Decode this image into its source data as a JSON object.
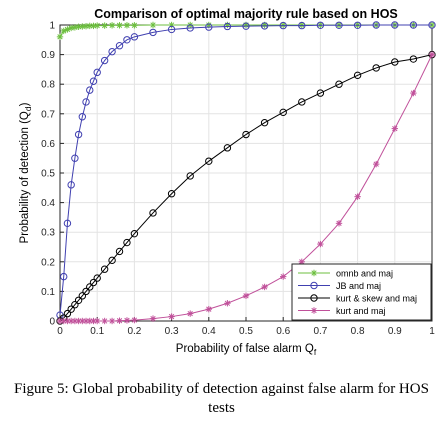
{
  "chart_data": {
    "type": "line",
    "title": "Comparison of  optimal majority rule based on HOS",
    "xlabel": "Probability of false alarm Q",
    "xlabel_sub": "f",
    "ylabel": "Probability of detection (Q",
    "ylabel_sub": "d",
    "ylabel_close": ")",
    "xlim": [
      0,
      1
    ],
    "ylim": [
      0,
      1
    ],
    "xticks": [
      0,
      0.1,
      0.2,
      0.3,
      0.4,
      0.5,
      0.6,
      0.7,
      0.8,
      0.9,
      1
    ],
    "yticks": [
      0,
      0.1,
      0.2,
      0.3,
      0.4,
      0.5,
      0.6,
      0.7,
      0.8,
      0.9,
      1
    ],
    "xtick_labels": [
      "0",
      "0.1",
      "0.2",
      "0.3",
      "0.4",
      "0.5",
      "0.6",
      "0.7",
      "0.8",
      "0.9",
      "1"
    ],
    "ytick_labels": [
      "0",
      "0.1",
      "0.2",
      "0.3",
      "0.4",
      "0.5",
      "0.6",
      "0.7",
      "0.8",
      "0.9",
      "1"
    ],
    "grid": true,
    "legend_position": "bottom-right",
    "x": [
      0,
      0.01,
      0.02,
      0.03,
      0.04,
      0.05,
      0.06,
      0.07,
      0.08,
      0.09,
      0.1,
      0.12,
      0.14,
      0.16,
      0.18,
      0.2,
      0.25,
      0.3,
      0.35,
      0.4,
      0.45,
      0.5,
      0.55,
      0.6,
      0.65,
      0.7,
      0.75,
      0.8,
      0.85,
      0.9,
      0.95,
      1.0
    ],
    "series": [
      {
        "name": "omnb and maj",
        "color": "#6dbf3f",
        "marker": "asterisk",
        "values": [
          0.96,
          0.98,
          0.985,
          0.99,
          0.992,
          0.994,
          0.995,
          0.996,
          0.997,
          0.997,
          0.998,
          0.998,
          0.999,
          0.999,
          0.999,
          0.999,
          1,
          1,
          1,
          1,
          1,
          1,
          1,
          1,
          1,
          1,
          1,
          1,
          1,
          1,
          1,
          1
        ]
      },
      {
        "name": "JB and maj",
        "color": "#4040b0",
        "marker": "circle",
        "values": [
          0.02,
          0.15,
          0.33,
          0.46,
          0.55,
          0.63,
          0.69,
          0.74,
          0.78,
          0.81,
          0.84,
          0.88,
          0.91,
          0.93,
          0.95,
          0.96,
          0.975,
          0.985,
          0.99,
          0.993,
          0.995,
          0.996,
          0.997,
          0.998,
          0.998,
          0.999,
          0.999,
          0.999,
          1,
          1,
          1,
          1
        ]
      },
      {
        "name": "kurt & skew and maj",
        "color": "#000000",
        "marker": "circle",
        "values": [
          0,
          0.01,
          0.025,
          0.04,
          0.055,
          0.07,
          0.085,
          0.1,
          0.115,
          0.13,
          0.145,
          0.175,
          0.205,
          0.235,
          0.265,
          0.295,
          0.365,
          0.43,
          0.49,
          0.54,
          0.585,
          0.63,
          0.67,
          0.705,
          0.74,
          0.77,
          0.8,
          0.83,
          0.855,
          0.875,
          0.885,
          0.9
        ]
      },
      {
        "name": "kurt and maj",
        "color": "#c0509a",
        "marker": "asterisk",
        "values": [
          0,
          0,
          0,
          0,
          0,
          0,
          0,
          0,
          0,
          0,
          0,
          0,
          0,
          0.001,
          0.002,
          0.003,
          0.008,
          0.015,
          0.025,
          0.04,
          0.06,
          0.085,
          0.115,
          0.15,
          0.2,
          0.26,
          0.33,
          0.42,
          0.53,
          0.65,
          0.77,
          0.9
        ]
      }
    ]
  },
  "caption": "Figure 5: Global probability of detection against false alarm for HOS tests"
}
